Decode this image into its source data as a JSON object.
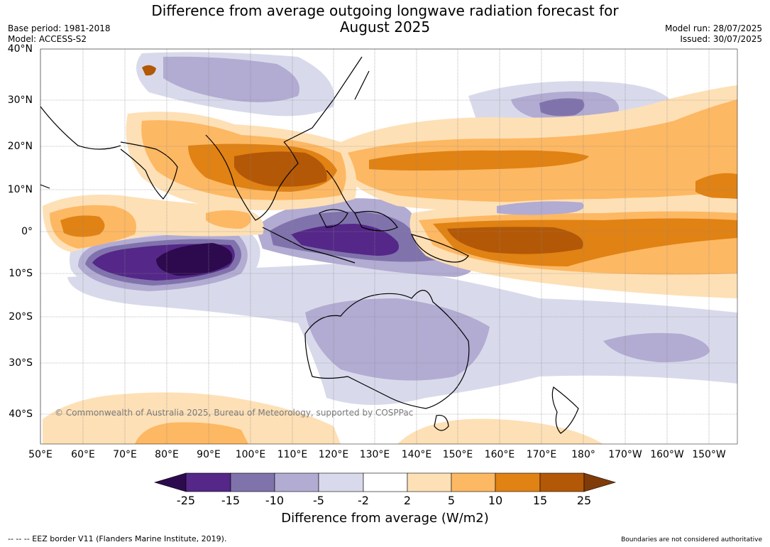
{
  "title_line1": "Difference from average outgoing longwave radiation forecast for",
  "title_line2": "August 2025",
  "meta": {
    "base_period": "Base period: 1981-2018",
    "model": "Model: ACCESS-S2",
    "model_run": "Model run: 28/07/2025",
    "issued": "Issued: 30/07/2025"
  },
  "lat_labels": [
    "40°N",
    "30°N",
    "20°N",
    "10°N",
    "0°",
    "10°S",
    "20°S",
    "30°S",
    "40°S"
  ],
  "lon_labels": [
    "50°E",
    "60°E",
    "70°E",
    "80°E",
    "90°E",
    "100°E",
    "110°E",
    "120°E",
    "130°E",
    "140°E",
    "150°E",
    "160°E",
    "170°E",
    "180°",
    "170°W",
    "160°W",
    "150°W"
  ],
  "credit": "© Commonwealth of Australia 2025, Bureau of Meteorology, supported by COSPPac",
  "colorbar": {
    "ticks": [
      "-25",
      "-15",
      "-10",
      "-5",
      "-2",
      "2",
      "5",
      "10",
      "15",
      "25"
    ],
    "colors": [
      "#2d0a4e",
      "#542788",
      "#8073ac",
      "#b2abd2",
      "#d8daeb",
      "#ffffff",
      "#fee0b6",
      "#fdb863",
      "#e08214",
      "#b35806",
      "#7f3b08"
    ],
    "title": "Difference from average (W/m2)"
  },
  "footer_left": "--  --  -- EEZ border V11 (Flanders Marine Institute, 2019).",
  "footer_right": "Boundaries are not considered authoritative"
}
